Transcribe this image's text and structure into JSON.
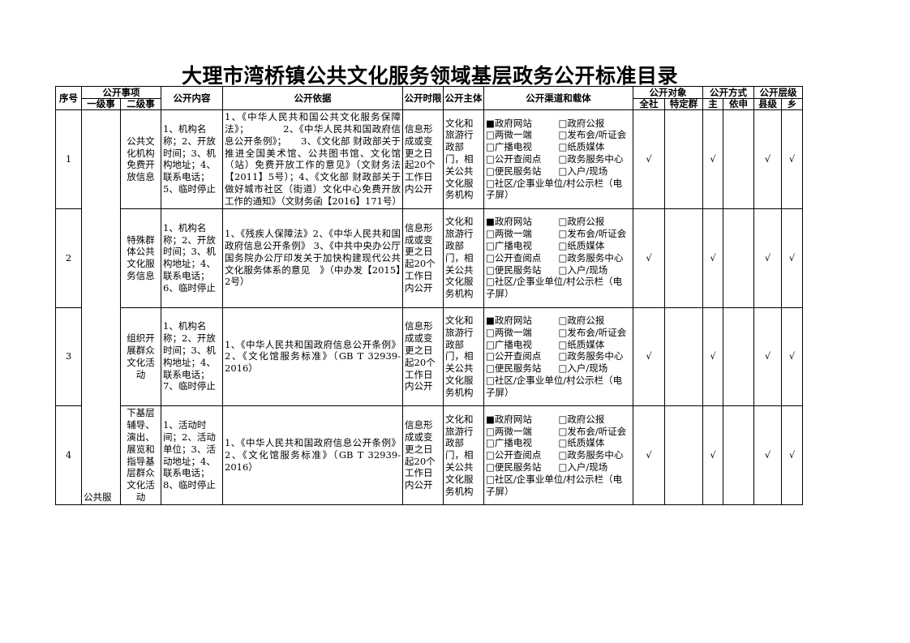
{
  "title": "大理市湾桥镇公共文化服务领域基层政务公开标准目录",
  "headers": {
    "seq": "序号",
    "item": "公开事项",
    "level1": "一级事",
    "level2": "二级事",
    "content": "公开内容",
    "basis": "公开依据",
    "deadline": "公开时限",
    "subject": "公开主体",
    "channel": "公开渠道和载体",
    "target": "公开对象",
    "target_all": "全社",
    "target_specific": "特定群",
    "method": "公开方式",
    "method_active": "主",
    "method_request": "依申",
    "level": "公开层级",
    "level_county": "县级",
    "level_town": "乡"
  },
  "level1_label": "公共服务",
  "check_mark": "√",
  "channels": [
    {
      "label": "政府网站",
      "checked": true
    },
    {
      "label": "政府公报",
      "checked": false
    },
    {
      "label": "两微一端",
      "checked": false
    },
    {
      "label": "发布会/听证会",
      "checked": false
    },
    {
      "label": "广播电视",
      "checked": false
    },
    {
      "label": "纸质媒体",
      "checked": false
    },
    {
      "label": "公开查阅点",
      "checked": false
    },
    {
      "label": "政务服务中心",
      "checked": false
    },
    {
      "label": "便民服务站",
      "checked": false
    },
    {
      "label": "入户/现场",
      "checked": false
    },
    {
      "label": "社区/企事业单位/村公示栏（电子屏）",
      "checked": false
    }
  ],
  "rows": [
    {
      "seq": "1",
      "level2": "公共文化机构免费开放信息",
      "content": "1、机构名称；2、开放时间；3、机构地址；4、联系电话；5、临时停止",
      "basis": "1、《中华人民共和国公共文化服务保障法》；　　　　2、《中华人民共和国政府信息公开条例》；　　3、《文化部 财政部关于推进全国美术馆、公共图书馆、文化馆（站）免费开放工作的意见》（文财务法【2011】5号）；4、《文化部 财政部关于做好城市社区（街道）文化中心免费开放工作的通知》（文财务函【2016】171号）",
      "deadline": "信息形成或变更之日起20个工作日内公开",
      "subject": "文化和旅游行政部门，相关公共文化服务机构",
      "all": true,
      "specific": false,
      "active": true,
      "request": false,
      "county": true,
      "town": true
    },
    {
      "seq": "2",
      "level2": "特殊群体公共文化服务信息",
      "content": "1、机构名称；2、开放时间；3、机构地址；4、联系电话；6、临时停止",
      "basis": "1、《残疾人保障法》2、《中华人民共和国政府信息公开条例》 3、《中共中央办公厅　国务院办公厅印发关于加快构建现代公共文化服务体系的意见　》（中办发【2015】2号）",
      "deadline": "信息形成或变更之日起20个工作日内公开",
      "subject": "文化和旅游行政部门，相关公共文化服务机构",
      "all": true,
      "specific": false,
      "active": true,
      "request": false,
      "county": true,
      "town": true
    },
    {
      "seq": "3",
      "level2": "组织开展群众文化活动",
      "content": "1、机构名称；2、开放时间；3、机构地址；4、联系电话；7、临时停止",
      "basis": "1、《中华人民共和国政府信息公开条例》2、《文化馆服务标准》（GB T 32939-2016）",
      "deadline": "信息形成或变更之日起20个工作日内公开",
      "subject": "文化和旅游行政部门，相关公共文化服务机构",
      "all": true,
      "specific": false,
      "active": true,
      "request": false,
      "county": true,
      "town": true
    },
    {
      "seq": "4",
      "level2": "下基层辅导、演出、展览和指导基层群众文化活动",
      "content": "1、活动时间；2、活动单位；3、活动地址；4、联系电话；8、临时停止",
      "basis": "1、《中华人民共和国政府信息公开条例》2、《文化馆服务标准》（GB T 32939-2016）",
      "deadline": "信息形成或变更之日起20个工作日内公开",
      "subject": "文化和旅游行政部门，相关公共文化服务机构",
      "all": true,
      "specific": false,
      "active": true,
      "request": false,
      "county": true,
      "town": true
    }
  ]
}
